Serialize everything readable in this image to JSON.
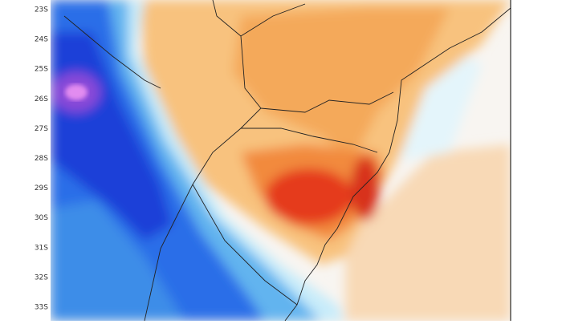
{
  "map": {
    "lat_labels": [
      "23S",
      "24S",
      "25S",
      "26S",
      "27S",
      "28S",
      "29S",
      "30S",
      "31S",
      "32S",
      "33S"
    ]
  }
}
